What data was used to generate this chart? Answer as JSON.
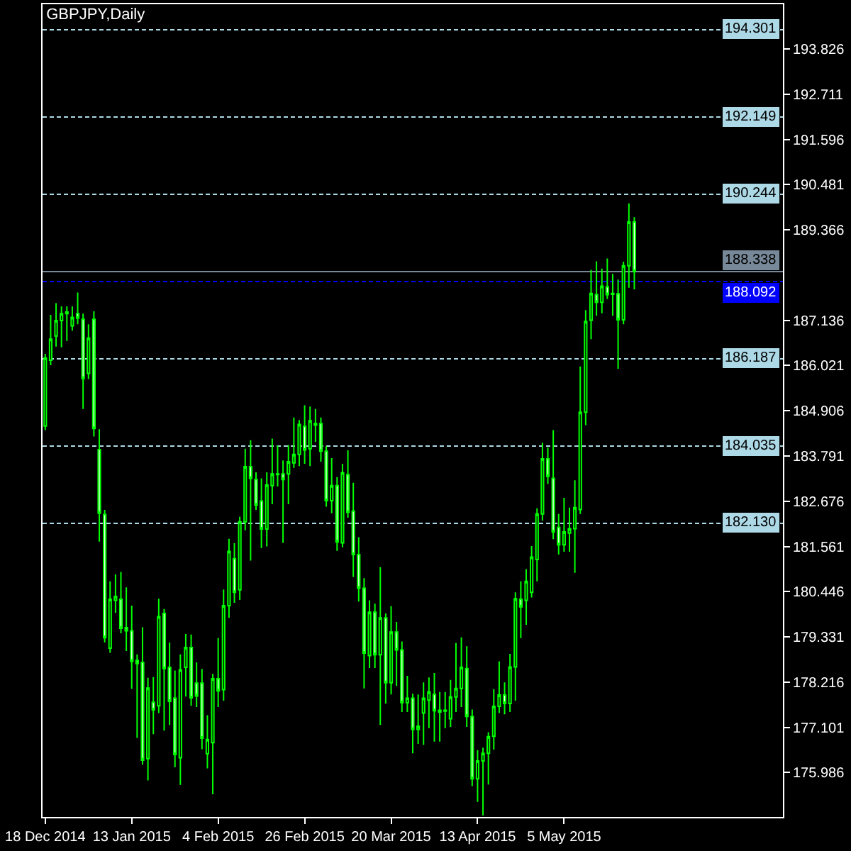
{
  "chart_data": {
    "type": "candlestick",
    "title": "GBPJPY,Daily",
    "categories": [
      "18 Dec 2014",
      null,
      null,
      null,
      null,
      null,
      null,
      null,
      null,
      null,
      null,
      null,
      null,
      null,
      null,
      null,
      "13 Jan 2015",
      null,
      null,
      null,
      null,
      null,
      null,
      null,
      null,
      null,
      null,
      null,
      null,
      null,
      null,
      null,
      "4 Feb 2015",
      null,
      null,
      null,
      null,
      null,
      null,
      null,
      null,
      null,
      null,
      null,
      null,
      null,
      null,
      null,
      "26 Feb 2015",
      null,
      null,
      null,
      null,
      null,
      null,
      null,
      null,
      null,
      null,
      null,
      null,
      null,
      null,
      null,
      "20 Mar 2015",
      null,
      null,
      null,
      null,
      null,
      null,
      null,
      null,
      null,
      null,
      null,
      null,
      null,
      null,
      null,
      "13 Apr 2015",
      null,
      null,
      null,
      null,
      null,
      null,
      null,
      null,
      null,
      null,
      null,
      null,
      null,
      null,
      null,
      "5 May 2015",
      null,
      null,
      null,
      null,
      null,
      null,
      null,
      null,
      null,
      null,
      null,
      null,
      null,
      null,
      null,
      null,
      null,
      null,
      null,
      null,
      null,
      null,
      null,
      null,
      null,
      null,
      null,
      null,
      null,
      null,
      null,
      null,
      null,
      null,
      null,
      null,
      null,
      null,
      null,
      null
    ],
    "ohlc": [
      [
        184.53,
        186.31,
        184.43,
        186.21
      ],
      [
        186.15,
        187.27,
        186.03,
        186.67
      ],
      [
        186.75,
        187.56,
        186.49,
        187.13
      ],
      [
        187.13,
        187.48,
        186.47,
        187.3
      ],
      [
        187.3,
        187.48,
        186.63,
        187.34
      ],
      [
        187.0,
        187.48,
        186.88,
        187.21
      ],
      [
        187.3,
        187.82,
        187.04,
        187.19
      ],
      [
        187.16,
        187.3,
        184.95,
        185.7
      ],
      [
        185.83,
        187.04,
        185.69,
        186.7
      ],
      [
        187.16,
        187.36,
        184.27,
        184.47
      ],
      [
        183.95,
        184.45,
        181.68,
        182.38
      ],
      [
        182.35,
        182.46,
        179.19,
        179.31
      ],
      [
        179.05,
        180.7,
        178.94,
        180.26
      ],
      [
        180.23,
        180.87,
        179.92,
        180.33
      ],
      [
        180.26,
        180.93,
        179.42,
        179.54
      ],
      [
        179.56,
        180.55,
        178.98,
        179.48
      ],
      [
        179.48,
        180.1,
        178.05,
        178.73
      ],
      [
        178.75,
        178.9,
        176.84,
        178.67
      ],
      [
        178.7,
        179.57,
        176.18,
        176.29
      ],
      [
        176.33,
        178.32,
        175.79,
        178.07
      ],
      [
        177.72,
        178.34,
        176.93,
        177.53
      ],
      [
        177.63,
        180.27,
        177.45,
        179.83
      ],
      [
        179.91,
        180.02,
        177.02,
        178.55
      ],
      [
        178.58,
        179.19,
        177.16,
        177.74
      ],
      [
        177.82,
        178.5,
        176.12,
        176.43
      ],
      [
        176.35,
        178.9,
        175.68,
        178.52
      ],
      [
        178.58,
        179.4,
        177.86,
        179.07
      ],
      [
        179.07,
        179.39,
        177.63,
        177.83
      ],
      [
        178.19,
        178.7,
        177.6,
        177.87
      ],
      [
        178.19,
        178.54,
        176.56,
        176.83
      ],
      [
        176.45,
        177.4,
        176.09,
        176.8
      ],
      [
        176.72,
        178.42,
        175.45,
        178.3
      ],
      [
        178.3,
        179.3,
        177.6,
        178.0
      ],
      [
        178.03,
        180.5,
        177.76,
        180.1
      ],
      [
        180.1,
        181.75,
        179.8,
        181.44
      ],
      [
        181.26,
        181.64,
        180.17,
        180.43
      ],
      [
        180.49,
        182.29,
        180.24,
        182.17
      ],
      [
        182.17,
        183.97,
        181.96,
        183.53
      ],
      [
        183.53,
        184.18,
        181.21,
        183.24
      ],
      [
        183.21,
        183.39,
        182.46,
        182.58
      ],
      [
        182.68,
        183.24,
        181.52,
        181.99
      ],
      [
        181.99,
        183.39,
        181.56,
        183.08
      ],
      [
        183.06,
        184.22,
        182.6,
        183.35
      ],
      [
        183.35,
        184.05,
        183.04,
        183.33
      ],
      [
        183.35,
        183.68,
        181.65,
        183.21
      ],
      [
        183.35,
        184.06,
        182.6,
        183.65
      ],
      [
        183.62,
        184.74,
        183.5,
        183.83
      ],
      [
        183.83,
        184.68,
        183.54,
        184.57
      ],
      [
        184.52,
        185.04,
        183.6,
        183.94
      ],
      [
        183.97,
        185.01,
        183.54,
        184.66
      ],
      [
        184.59,
        184.95,
        184.14,
        184.55
      ],
      [
        184.59,
        184.74,
        183.65,
        183.91
      ],
      [
        183.91,
        184.03,
        182.54,
        182.69
      ],
      [
        182.69,
        183.74,
        182.38,
        183.06
      ],
      [
        183.06,
        183.27,
        181.45,
        181.67
      ],
      [
        181.65,
        183.6,
        181.54,
        183.38
      ],
      [
        183.33,
        183.93,
        182.27,
        182.4
      ],
      [
        182.43,
        183.13,
        180.81,
        181.36
      ],
      [
        181.36,
        181.79,
        180.2,
        180.53
      ],
      [
        180.53,
        180.78,
        178.06,
        178.93
      ],
      [
        178.87,
        180.23,
        178.56,
        179.94
      ],
      [
        179.94,
        180.15,
        178.56,
        178.89
      ],
      [
        178.89,
        181.05,
        177.16,
        179.8
      ],
      [
        179.8,
        179.91,
        177.69,
        178.2
      ],
      [
        178.2,
        180.09,
        177.91,
        179.45
      ],
      [
        179.45,
        179.7,
        178.12,
        179.01
      ],
      [
        179.01,
        179.22,
        177.48,
        177.71
      ],
      [
        177.71,
        178.37,
        177.48,
        177.82
      ],
      [
        177.82,
        177.93,
        176.46,
        177.05
      ],
      [
        177.05,
        177.91,
        176.69,
        177.13
      ],
      [
        177.45,
        178.21,
        176.67,
        177.82
      ],
      [
        177.77,
        178.33,
        177.08,
        177.97
      ],
      [
        177.91,
        178.44,
        176.75,
        177.51
      ],
      [
        177.52,
        177.97,
        176.75,
        177.48
      ],
      [
        177.5,
        177.97,
        177.08,
        177.52
      ],
      [
        177.31,
        178.27,
        177.11,
        177.85
      ],
      [
        177.85,
        179.18,
        177.48,
        178.06
      ],
      [
        178.06,
        179.32,
        177.6,
        178.58
      ],
      [
        178.55,
        179.1,
        177.11,
        177.37
      ],
      [
        177.37,
        177.54,
        175.65,
        175.83
      ],
      [
        175.83,
        176.54,
        175.26,
        176.27
      ],
      [
        176.27,
        176.6,
        174.93,
        176.46
      ],
      [
        176.46,
        176.98,
        175.69,
        176.87
      ],
      [
        176.88,
        178.04,
        176.55,
        177.62
      ],
      [
        177.62,
        178.73,
        177.45,
        177.9
      ],
      [
        177.9,
        178.21,
        177.42,
        177.69
      ],
      [
        177.69,
        178.91,
        177.48,
        178.59
      ],
      [
        178.59,
        180.43,
        177.76,
        180.27
      ],
      [
        180.26,
        180.7,
        179.3,
        180.07
      ],
      [
        180.23,
        181.0,
        179.63,
        180.7
      ],
      [
        180.43,
        181.57,
        180.3,
        181.3
      ],
      [
        181.24,
        182.5,
        180.7,
        182.36
      ],
      [
        182.36,
        184.12,
        182.2,
        183.72
      ],
      [
        183.72,
        184.0,
        183.1,
        183.29
      ],
      [
        183.24,
        184.43,
        181.74,
        181.92
      ],
      [
        182.03,
        182.36,
        181.36,
        181.6
      ],
      [
        181.6,
        182.76,
        181.43,
        181.92
      ],
      [
        181.89,
        182.52,
        181.43,
        182.0
      ],
      [
        182.0,
        183.19,
        180.91,
        182.52
      ],
      [
        182.47,
        186.0,
        182.36,
        184.87
      ],
      [
        184.87,
        187.39,
        184.55,
        187.11
      ],
      [
        187.14,
        188.38,
        186.67,
        187.8
      ],
      [
        187.77,
        188.59,
        187.25,
        187.58
      ],
      [
        187.58,
        188.41,
        187.31,
        187.98
      ],
      [
        187.96,
        188.66,
        187.66,
        187.77
      ],
      [
        187.8,
        188.28,
        187.25,
        187.78
      ],
      [
        187.79,
        188.14,
        185.94,
        187.15
      ],
      [
        187.15,
        188.58,
        187.04,
        188.48
      ],
      [
        188.48,
        190.02,
        187.94,
        189.56
      ],
      [
        189.56,
        189.68,
        187.9,
        188.34
      ],
      null,
      null,
      null,
      null,
      null,
      null,
      null,
      null,
      null,
      null,
      null,
      null,
      null,
      null,
      null,
      null,
      null,
      null,
      null,
      null,
      null,
      null,
      null,
      null,
      null,
      null,
      null
    ],
    "color": "#00ff00",
    "ylim": [
      174.89,
      194.93
    ],
    "yticks": [
      193.826,
      192.711,
      191.596,
      190.481,
      189.366,
      187.136,
      186.021,
      184.906,
      183.791,
      182.676,
      181.561,
      180.446,
      179.331,
      178.216,
      177.101,
      175.986
    ],
    "ref_lines": [
      {
        "axis": "y",
        "value": 194.301,
        "label": "194.301",
        "color": "#add8e6",
        "line_style": "dashed"
      },
      {
        "axis": "y",
        "value": 192.149,
        "label": "192.149",
        "color": "#add8e6",
        "line_style": "dashed"
      },
      {
        "axis": "y",
        "value": 190.244,
        "label": "190.244",
        "color": "#add8e6",
        "line_style": "dashed"
      },
      {
        "axis": "y",
        "value": 188.338,
        "label": "188.338",
        "color": "#778899",
        "line_style": "solid"
      },
      {
        "axis": "y",
        "value": 188.092,
        "label": "188.092",
        "color": "#0000ff",
        "line_style": "dashed"
      },
      {
        "axis": "y",
        "value": 186.187,
        "label": "186.187",
        "color": "#add8e6",
        "line_style": "dashed"
      },
      {
        "axis": "y",
        "value": 184.035,
        "label": "184.035",
        "color": "#add8e6",
        "line_style": "dashed"
      },
      {
        "axis": "y",
        "value": 182.13,
        "label": "182.130",
        "color": "#add8e6",
        "line_style": "dashed"
      }
    ],
    "grid": false
  }
}
